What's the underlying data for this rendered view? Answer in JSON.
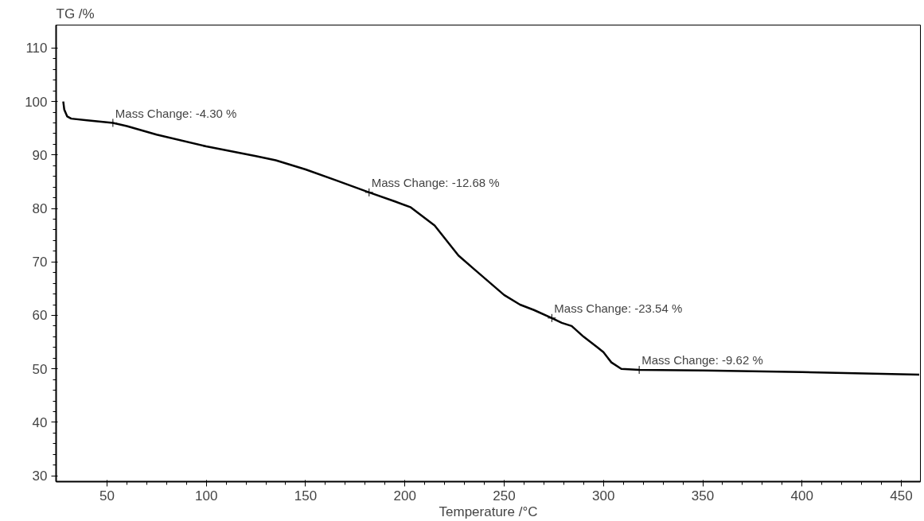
{
  "chart_data": {
    "type": "line",
    "xlabel": "Temperature /°C",
    "ylabel": "TG /%",
    "x": [
      28,
      28.5,
      30,
      32,
      40,
      53,
      60,
      75,
      100,
      125,
      135,
      150,
      165,
      182,
      195,
      203,
      215,
      227,
      235,
      245,
      250,
      258,
      265,
      274,
      279,
      284,
      290,
      297,
      300,
      304,
      309,
      318,
      350,
      400,
      459
    ],
    "series": [
      {
        "color": "#000000",
        "values": [
          100,
          98.5,
          97.2,
          96.8,
          96.5,
          96.0,
          95.4,
          93.8,
          91.6,
          89.8,
          89.0,
          87.3,
          85.3,
          83.0,
          81.3,
          80.2,
          76.8,
          71.2,
          68.6,
          65.4,
          63.8,
          62.0,
          61.0,
          59.5,
          58.6,
          58.0,
          56.0,
          54.0,
          53.1,
          51.2,
          50.0,
          49.8,
          49.7,
          49.4,
          48.9
        ]
      }
    ],
    "annotations": [
      {
        "text": "Mass Change: -4.30 %",
        "x": 53,
        "y": 96.0
      },
      {
        "text": "Mass Change: -12.68 %",
        "x": 182,
        "y": 83.0
      },
      {
        "text": "Mass Change: -23.54 %",
        "x": 274,
        "y": 59.5
      },
      {
        "text": "Mass Change: -9.62 %",
        "x": 318,
        "y": 49.8
      }
    ],
    "xlim": [
      24.4,
      459.6
    ],
    "ylim": [
      28.9,
      114.3
    ],
    "xticks": [
      50,
      100,
      150,
      200,
      250,
      300,
      350,
      400,
      450
    ],
    "yticks": [
      30,
      40,
      50,
      60,
      70,
      80,
      90,
      100,
      110
    ],
    "grid": false,
    "marker": "none",
    "line_style": "solid"
  }
}
